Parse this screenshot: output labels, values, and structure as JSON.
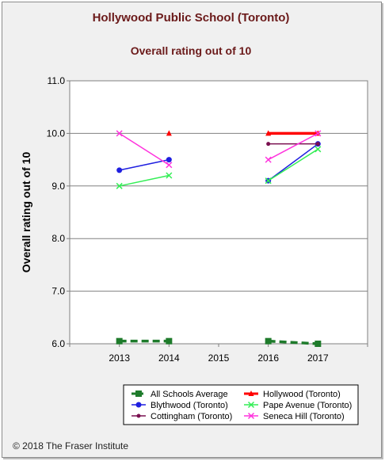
{
  "chart_data": {
    "type": "line",
    "title": "Hollywood Public School (Toronto)",
    "subtitle": "Overall rating out of 10",
    "ylabel": "Overall rating out of 10",
    "xlabel": "",
    "ylim": [
      6.0,
      11.0
    ],
    "yticks": [
      "6.0",
      "7.0",
      "8.0",
      "9.0",
      "10.0",
      "11.0"
    ],
    "categories": [
      "2013",
      "2014",
      "2015",
      "2016",
      "2017"
    ],
    "grid": true,
    "legend_position": "bottom",
    "series": [
      {
        "name": "All Schools Average",
        "color": "#1e7b2b",
        "dashed": true,
        "marker": "square",
        "values": [
          6.05,
          6.05,
          null,
          6.05,
          6.0
        ]
      },
      {
        "name": "Hollywood (Toronto)",
        "color": "#ff0000",
        "dashed": false,
        "marker": "triangle",
        "values": [
          null,
          10.0,
          null,
          10.0,
          10.0
        ]
      },
      {
        "name": "Blythwood (Toronto)",
        "color": "#1f1fe0",
        "dashed": false,
        "marker": "circle",
        "values": [
          9.3,
          9.5,
          null,
          9.1,
          9.8
        ]
      },
      {
        "name": "Pape Avenue (Toronto)",
        "color": "#33ee55",
        "dashed": false,
        "marker": "x",
        "values": [
          9.0,
          9.2,
          null,
          9.1,
          9.7
        ]
      },
      {
        "name": "Cottingham (Toronto)",
        "color": "#7a1050",
        "dashed": false,
        "marker": "dot",
        "values": [
          null,
          null,
          null,
          9.8,
          9.8
        ]
      },
      {
        "name": "Seneca Hill (Toronto)",
        "color": "#ff33dd",
        "dashed": false,
        "marker": "x",
        "values": [
          10.0,
          9.4,
          null,
          9.5,
          10.0
        ]
      }
    ]
  },
  "footer": {
    "copyright": "© 2018 The Fraser Institute"
  }
}
